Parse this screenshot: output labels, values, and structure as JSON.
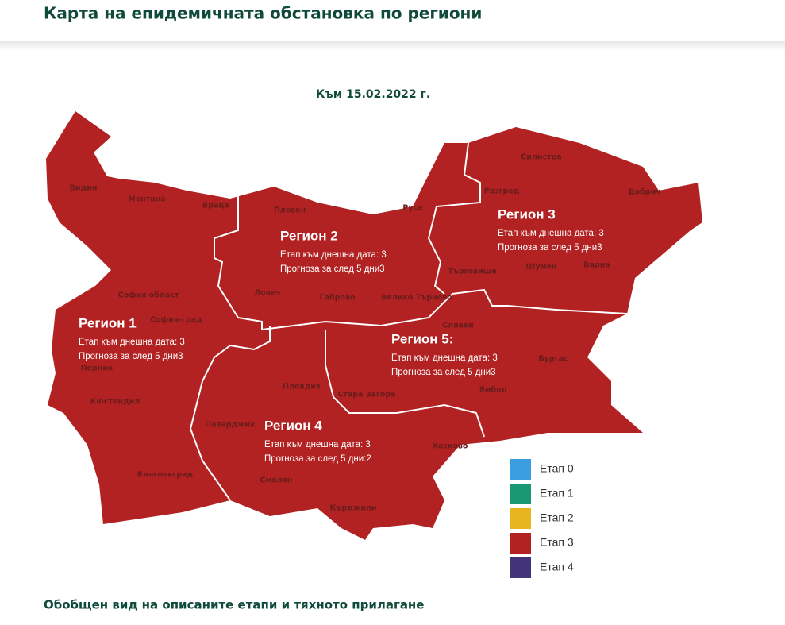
{
  "header": {
    "title": "Карта на епидемичната обстановка по региони"
  },
  "map": {
    "date": "Към 15.02.2022 г.",
    "provinces": [
      "Видин",
      "Монтана",
      "Враца",
      "Плевен",
      "Русе",
      "Силистра",
      "Разград",
      "Добрич",
      "Търговище",
      "Шумен",
      "Варна",
      "Ловеч",
      "Габрово",
      "Велико Търново",
      "София област",
      "София-град",
      "Перник",
      "Кюстендил",
      "Благоевград",
      "Пазарджик",
      "Пловдив",
      "Стара Загора",
      "Сливен",
      "Ямбол",
      "Бургас",
      "Хасково",
      "Смолян",
      "Кърджали"
    ],
    "regions": [
      {
        "name": "Регион 1",
        "current": "Етап към днешна дата: 3",
        "forecast": "Прогноза за след 5 дни3"
      },
      {
        "name": "Регион 2",
        "current": "Етап към днешна дата: 3",
        "forecast": "Прогноза за след 5 дни3"
      },
      {
        "name": "Регион 3",
        "current": "Етап към днешна дата: 3",
        "forecast": "Прогноза за след 5 дни3"
      },
      {
        "name": "Регион 5:",
        "current": "Етап към днешна дата: 3",
        "forecast": "Прогноза за след 5 дни3"
      },
      {
        "name": "Регион 4",
        "current": "Етап към днешна дата: 3",
        "forecast": "Прогноза за след 5 дни:2"
      }
    ],
    "legend": [
      {
        "label": "Етап 0",
        "color": "#3a9de0"
      },
      {
        "label": "Етап 1",
        "color": "#1a9873"
      },
      {
        "label": "Етап 2",
        "color": "#e8b420"
      },
      {
        "label": "Етап 3",
        "color": "#b22222"
      },
      {
        "label": "Етап 4",
        "color": "#433479"
      }
    ]
  },
  "footer": {
    "title": "Обобщен вид на описаните етапи и тяхното прилагане"
  }
}
